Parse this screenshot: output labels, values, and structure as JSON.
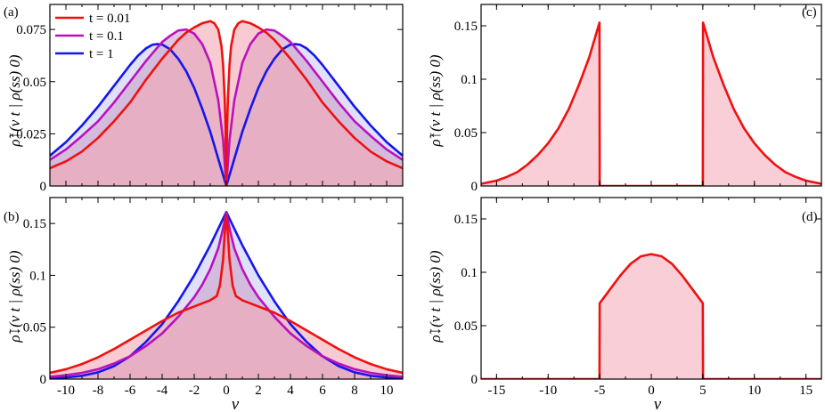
{
  "colors": {
    "t001": "#ee1111",
    "t01": "#bb11bb",
    "t1": "#1515ee",
    "fill_t001": "#f4a6b4",
    "fill_t01": "#c9a2cc",
    "fill_t1": "#c9cdf2"
  },
  "figure": {
    "x_label": "v",
    "y_label_up": "ρ̃↑(v t | ρ(ss) 0)",
    "y_label_down": "ρ̃↓(v t | ρ(ss) 0)"
  },
  "chart_data": [
    {
      "panel": "(a)",
      "type": "line",
      "xlim": [
        -11,
        11
      ],
      "ylim": [
        0,
        0.087
      ],
      "xticks": [
        -10,
        -8,
        -6,
        -4,
        -2,
        0,
        2,
        4,
        6,
        8,
        10
      ],
      "xtick_labels": [
        "-10",
        "-8",
        "-6",
        "-4",
        "-2",
        "0",
        "2",
        "4",
        "6",
        "8",
        "10"
      ],
      "show_xtick_labels": false,
      "yticks": [
        0,
        0.025,
        0.05,
        0.075
      ],
      "ytick_labels": [
        "0",
        "0.025",
        "0.05",
        "0.075"
      ],
      "legend": {
        "position": "top-left",
        "entries": [
          "t = 0.01",
          "t = 0.1",
          "t = 1"
        ]
      },
      "series": [
        {
          "name": "t = 0.01",
          "color_key": "t001",
          "x": [
            0,
            0.05,
            0.1,
            0.2,
            0.3,
            0.5,
            0.75,
            1,
            1.5,
            2,
            2.5,
            3,
            4,
            5,
            6,
            7,
            8,
            9,
            10,
            11
          ],
          "y": [
            0,
            0.028,
            0.042,
            0.058,
            0.067,
            0.075,
            0.078,
            0.079,
            0.078,
            0.076,
            0.0735,
            0.07,
            0.061,
            0.051,
            0.04,
            0.031,
            0.023,
            0.0165,
            0.0118,
            0.0085
          ]
        },
        {
          "name": "t = 0.1",
          "color_key": "t01",
          "x": [
            0,
            0.2,
            0.5,
            1,
            1.5,
            2,
            2.5,
            3,
            3.5,
            4,
            5,
            6,
            7,
            8,
            9,
            10,
            11
          ],
          "y": [
            0,
            0.022,
            0.041,
            0.059,
            0.068,
            0.073,
            0.075,
            0.0745,
            0.072,
            0.069,
            0.06,
            0.05,
            0.04,
            0.031,
            0.024,
            0.0175,
            0.0125
          ]
        },
        {
          "name": "t = 1",
          "color_key": "t1",
          "x": [
            0,
            0.5,
            1,
            1.5,
            2,
            2.5,
            3,
            3.5,
            4,
            4.3,
            4.6,
            5,
            5.5,
            6,
            7,
            8,
            9,
            10,
            11
          ],
          "y": [
            0,
            0.013,
            0.026,
            0.037,
            0.047,
            0.055,
            0.061,
            0.0655,
            0.0678,
            0.068,
            0.0677,
            0.066,
            0.0625,
            0.058,
            0.048,
            0.038,
            0.029,
            0.021,
            0.0145
          ]
        }
      ]
    },
    {
      "panel": "(b)",
      "type": "line",
      "xlim": [
        -11,
        11
      ],
      "ylim": [
        0,
        0.175
      ],
      "xticks": [
        -10,
        -8,
        -6,
        -4,
        -2,
        0,
        2,
        4,
        6,
        8,
        10
      ],
      "xtick_labels": [
        "-10",
        "-8",
        "-6",
        "-4",
        "-2",
        "0",
        "2",
        "4",
        "6",
        "8",
        "10"
      ],
      "show_xtick_labels": true,
      "yticks": [
        0,
        0.05,
        0.1,
        0.15
      ],
      "ytick_labels": [
        "0",
        "0.05",
        "0.1",
        "0.15"
      ],
      "series": [
        {
          "name": "t = 0.01",
          "color_key": "t001",
          "x": [
            0,
            0.1,
            0.2,
            0.4,
            0.6,
            1,
            1.5,
            2,
            3,
            4,
            5,
            6,
            7,
            8,
            9,
            10,
            11
          ],
          "y": [
            0.158,
            0.14,
            0.115,
            0.09,
            0.08,
            0.076,
            0.073,
            0.07,
            0.064,
            0.056,
            0.047,
            0.038,
            0.029,
            0.021,
            0.0145,
            0.0095,
            0.006
          ]
        },
        {
          "name": "t = 0.1",
          "color_key": "t01",
          "x": [
            0,
            0.25,
            0.5,
            1,
            1.5,
            2,
            3,
            4,
            5,
            6,
            7,
            8,
            9,
            10,
            11
          ],
          "y": [
            0.16,
            0.142,
            0.126,
            0.106,
            0.091,
            0.079,
            0.06,
            0.044,
            0.032,
            0.022,
            0.015,
            0.0095,
            0.006,
            0.0037,
            0.0022
          ]
        },
        {
          "name": "t = 1",
          "color_key": "t1",
          "x": [
            0,
            0.5,
            1,
            2,
            3,
            4,
            5,
            6,
            7,
            8,
            9,
            10,
            11
          ],
          "y": [
            0.161,
            0.145,
            0.129,
            0.1,
            0.075,
            0.053,
            0.036,
            0.022,
            0.0125,
            0.0065,
            0.0032,
            0.0015,
            0.0007
          ]
        }
      ]
    },
    {
      "panel": "(c)",
      "type": "area",
      "xlim": [
        -16.5,
        16.5
      ],
      "ylim": [
        0,
        0.17
      ],
      "xticks": [
        -15,
        -10,
        -5,
        0,
        5,
        10,
        15
      ],
      "xtick_labels": [
        "-15",
        "-10",
        "-5",
        "0",
        "5",
        "10",
        "15"
      ],
      "show_xtick_labels": false,
      "yticks": [
        0,
        0.05,
        0.1,
        0.15
      ],
      "ytick_labels": [
        "0",
        "0.05",
        "0.1",
        "0.15"
      ],
      "series": [
        {
          "name": "",
          "color_key": "t001",
          "x": [
            -16.5,
            -15,
            -14,
            -13,
            -12,
            -11,
            -10,
            -9,
            -8,
            -7,
            -6,
            -5.02,
            -5,
            5,
            5.02,
            6,
            7,
            8,
            9,
            10,
            11,
            12,
            13,
            14,
            15,
            16.5
          ],
          "y": [
            0.002,
            0.005,
            0.0085,
            0.013,
            0.02,
            0.029,
            0.04,
            0.054,
            0.072,
            0.095,
            0.121,
            0.153,
            0,
            0,
            0.153,
            0.121,
            0.095,
            0.072,
            0.054,
            0.04,
            0.029,
            0.02,
            0.013,
            0.0085,
            0.005,
            0.002
          ]
        }
      ]
    },
    {
      "panel": "(d)",
      "type": "area",
      "xlim": [
        -16.5,
        16.5
      ],
      "ylim": [
        0,
        0.17
      ],
      "xticks": [
        -15,
        -10,
        -5,
        0,
        5,
        10,
        15
      ],
      "xtick_labels": [
        "-15",
        "-10",
        "-5",
        "0",
        "5",
        "10",
        "15"
      ],
      "show_xtick_labels": true,
      "yticks": [
        0,
        0.05,
        0.1,
        0.15
      ],
      "ytick_labels": [
        "0",
        "0.05",
        "0.1",
        "0.15"
      ],
      "series": [
        {
          "name": "",
          "color_key": "t001",
          "x": [
            -16.5,
            -5.02,
            -5,
            -4,
            -3,
            -2,
            -1,
            0,
            1,
            2,
            3,
            4,
            5,
            5.02,
            16.5
          ],
          "y": [
            0,
            0,
            0.071,
            0.084,
            0.097,
            0.108,
            0.115,
            0.117,
            0.115,
            0.108,
            0.097,
            0.084,
            0.071,
            0,
            0
          ]
        }
      ]
    }
  ]
}
